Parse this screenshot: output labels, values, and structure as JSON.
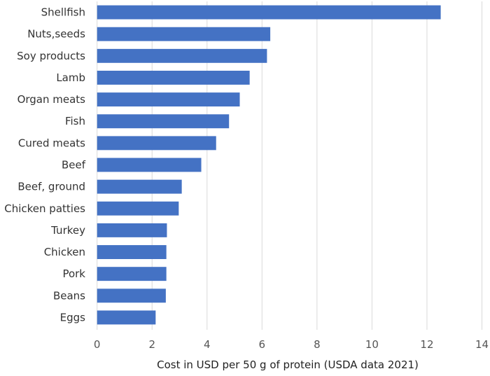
{
  "chart_data": {
    "type": "bar",
    "orientation": "horizontal",
    "categories": [
      "Shellfish",
      "Nuts,seeds",
      "Soy products",
      "Lamb",
      "Organ meats",
      "Fish",
      "Cured meats",
      "Beef",
      "Beef, ground",
      "Chicken patties",
      "Turkey",
      "Chicken",
      "Pork",
      "Beans",
      "Eggs"
    ],
    "values": [
      12.5,
      6.3,
      6.18,
      5.55,
      5.19,
      4.8,
      4.33,
      3.79,
      3.08,
      2.97,
      2.54,
      2.52,
      2.52,
      2.5,
      2.13
    ],
    "title": "",
    "xlabel": "Cost in USD per 50 g of protein (USDA data 2021)",
    "ylabel": "",
    "xlim": [
      0,
      14
    ],
    "xticks": [
      "0",
      "2",
      "4",
      "6",
      "8",
      "10",
      "12",
      "14"
    ],
    "grid": "vertical",
    "legend": "none",
    "bar_color": "#4472C4"
  }
}
